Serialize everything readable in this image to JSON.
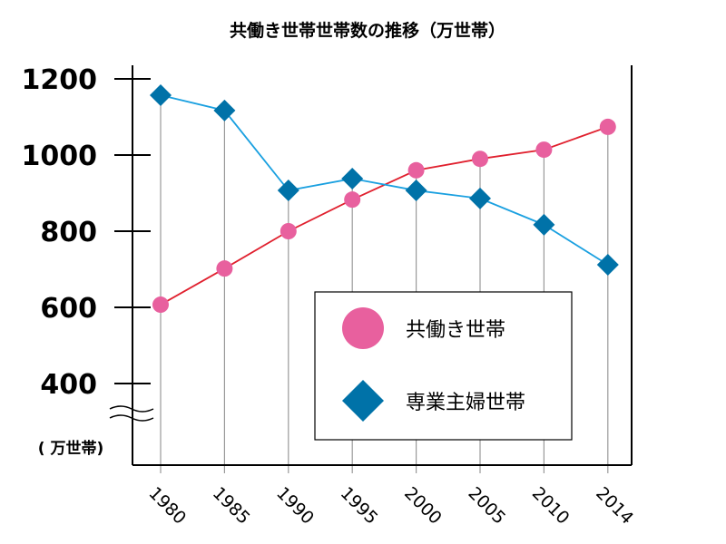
{
  "chart_data": {
    "type": "line",
    "title": "共働き世帯世帯数の推移（万世帯）",
    "ylabel": "( 万世帯)",
    "categories": [
      "1980",
      "1985",
      "1990",
      "1995",
      "2000",
      "2005",
      "2010",
      "2014"
    ],
    "yticks": [
      "400",
      "600",
      "800",
      "1000",
      "1200"
    ],
    "ylim": [
      400,
      1200
    ],
    "axis_break": true,
    "legend_position": "bottom-right",
    "series": [
      {
        "name": "共働き世帯",
        "color": "#e8609e",
        "marker": "circle",
        "line_color": "#e0202e",
        "values": [
          607,
          702,
          800,
          883,
          960,
          990,
          1014,
          1074
        ]
      },
      {
        "name": "専業主婦世帯",
        "color": "#0072a8",
        "marker": "diamond",
        "line_color": "#1aa0e0",
        "values": [
          1157,
          1117,
          907,
          938,
          907,
          886,
          817,
          712
        ]
      }
    ]
  }
}
